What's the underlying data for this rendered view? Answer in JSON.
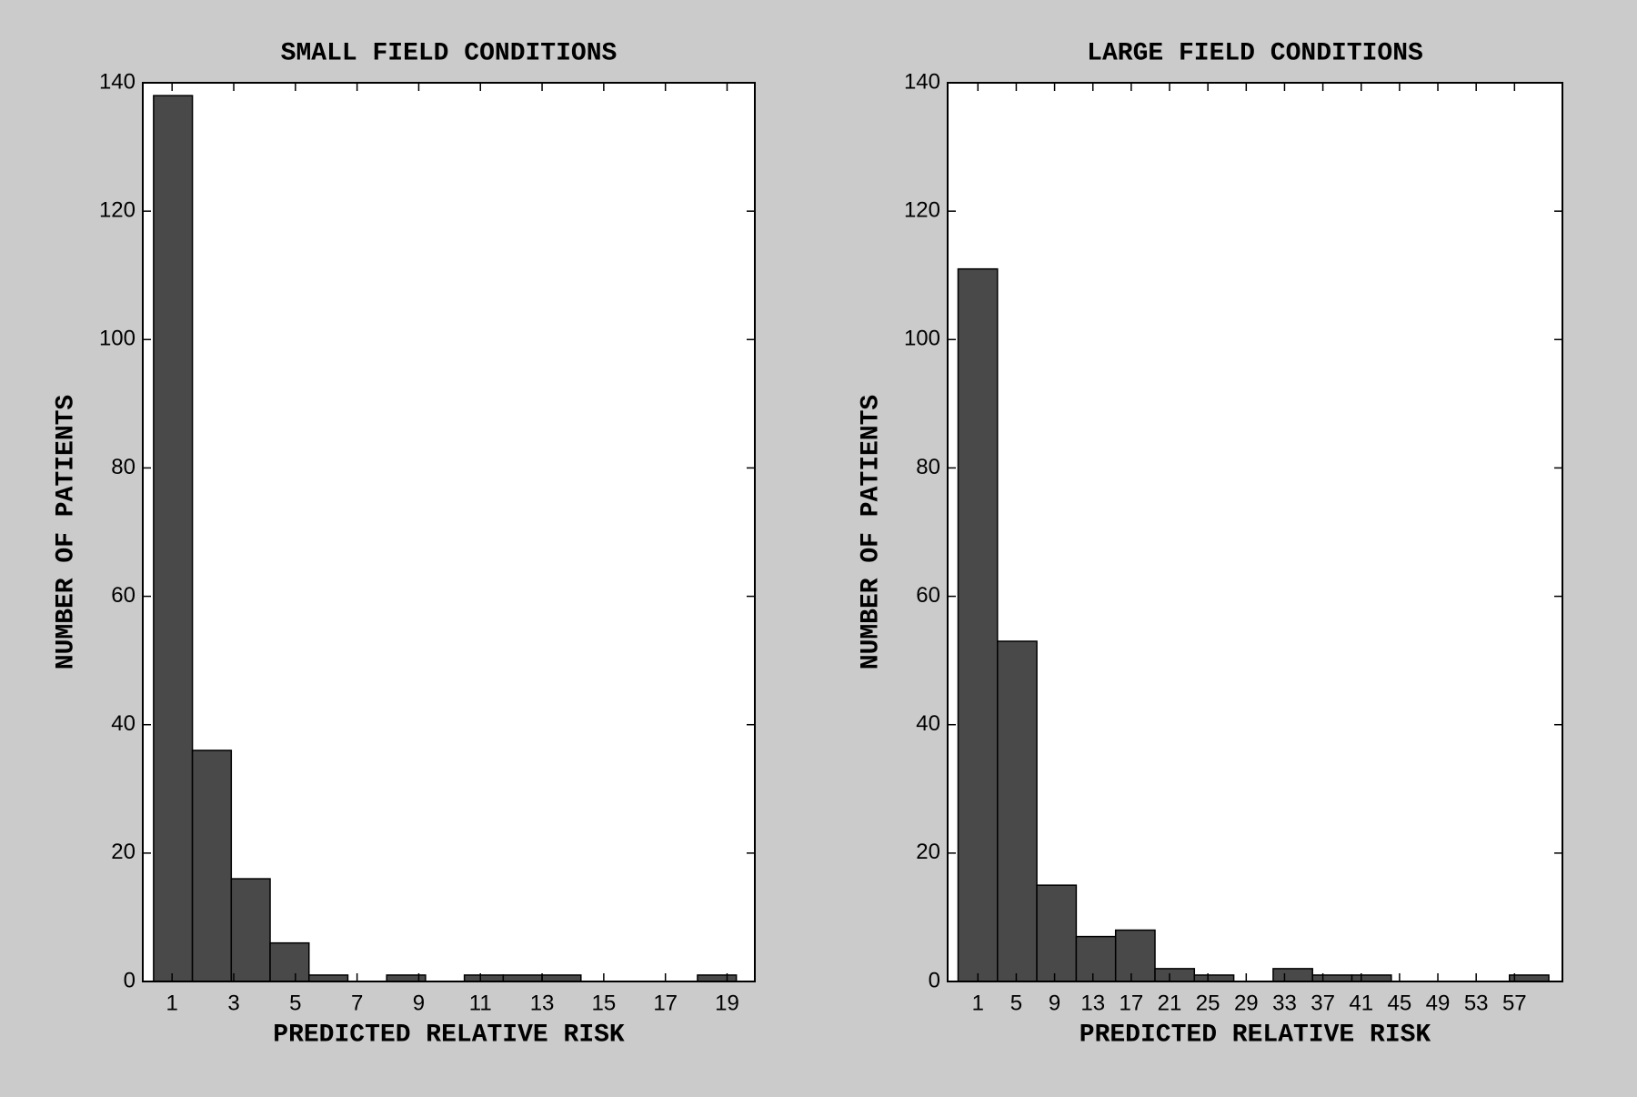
{
  "chart_data": [
    {
      "type": "histogram",
      "title": "SMALL FIELD CONDITIONS",
      "x_label": "PREDICTED RELATIVE RISK",
      "y_label": "NUMBER OF PATIENTS",
      "bins": [
        0.4,
        1.66,
        2.92,
        4.18,
        5.44,
        6.7,
        7.96,
        9.22,
        10.48,
        11.74,
        13,
        14.26,
        15.52,
        16.78,
        18.04,
        19.3
      ],
      "values": [
        138,
        36,
        16,
        6,
        1,
        0,
        1,
        0,
        1,
        1,
        1,
        0,
        0,
        0,
        1
      ],
      "color": "#494949",
      "xlim": [
        0.05,
        19.9
      ],
      "xticks": [
        1,
        3,
        5,
        7,
        9,
        11,
        13,
        15,
        17,
        19
      ],
      "ylim": [
        0,
        140
      ],
      "yticks": [
        0,
        20,
        40,
        60,
        80,
        100,
        120,
        140
      ]
    },
    {
      "type": "histogram",
      "title": "LARGE FIELD CONDITIONS",
      "x_label": "PREDICTED RELATIVE RISK",
      "y_label": "NUMBER OF PATIENTS",
      "bins": [
        -1.07,
        3.04,
        7.15,
        11.26,
        15.37,
        19.48,
        23.59,
        27.7,
        31.81,
        35.92,
        40.03,
        44.14,
        48.25,
        52.36,
        56.47,
        60.58
      ],
      "values": [
        111,
        53,
        15,
        7,
        8,
        2,
        1,
        0,
        2,
        1,
        1,
        0,
        0,
        0,
        1
      ],
      "color": "#494949",
      "xlim": [
        -2.16,
        62
      ],
      "xticks": [
        1,
        5,
        9,
        13,
        17,
        21,
        25,
        29,
        33,
        37,
        41,
        45,
        49,
        53,
        57
      ],
      "ylim": [
        0,
        140
      ],
      "yticks": [
        0,
        20,
        40,
        60,
        80,
        100,
        120,
        140
      ]
    }
  ]
}
